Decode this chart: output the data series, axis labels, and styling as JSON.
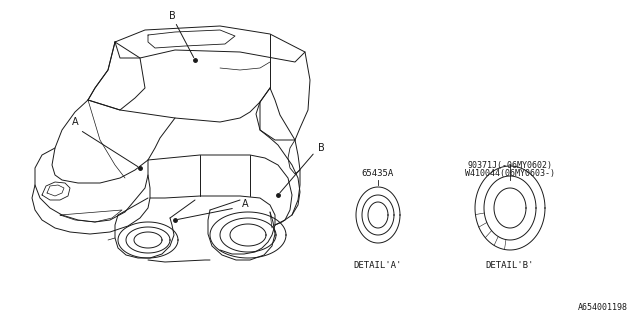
{
  "bg_color": "#ffffff",
  "line_color": "#1a1a1a",
  "text_color": "#1a1a1a",
  "part_number_A": "65435A",
  "part_number_B_line1": "90371J(-06MY0602)",
  "part_number_B_line2": "W410044(06MY0603-)",
  "detail_a_label": "DETAIL'A'",
  "detail_b_label": "DETAIL'B'",
  "label_A": "A",
  "label_B": "B",
  "diagram_id": "A654001198",
  "fig_width": 6.4,
  "fig_height": 3.2,
  "dpi": 100
}
